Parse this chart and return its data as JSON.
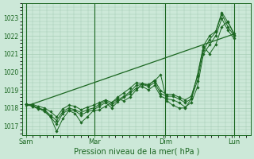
{
  "bg_color": "#cce8d8",
  "grid_color": "#a0c8b0",
  "line_color": "#1a6620",
  "xlabel": "Pression niveau de la mer( hPa )",
  "ylim": [
    1016.5,
    1023.8
  ],
  "yticks": [
    1017,
    1018,
    1019,
    1020,
    1021,
    1022,
    1023
  ],
  "xtick_labels": [
    "Sam",
    "Mar",
    "Dim",
    "Lun"
  ],
  "xtick_positions": [
    0,
    0.33,
    0.67,
    1.0
  ],
  "total_points": 35,
  "series": [
    [
      1018.2,
      1018.15,
      1018.0,
      1017.8,
      1017.5,
      1016.7,
      1017.4,
      1017.85,
      1017.7,
      1017.2,
      1017.5,
      1017.85,
      1017.9,
      1018.1,
      1018.3,
      1018.5,
      1018.4,
      1018.6,
      1019.0,
      1019.35,
      1019.3,
      1019.5,
      1019.85,
      1018.4,
      1018.15,
      1018.0,
      1018.0,
      1018.5,
      1019.8,
      1021.4,
      1021.0,
      1021.5,
      1022.5,
      1022.8,
      1022.05
    ],
    [
      1018.2,
      1018.1,
      1018.0,
      1017.9,
      1017.6,
      1017.3,
      1017.8,
      1018.0,
      1017.9,
      1017.75,
      1017.9,
      1018.0,
      1018.2,
      1018.4,
      1018.15,
      1018.45,
      1018.65,
      1018.9,
      1019.25,
      1019.3,
      1019.2,
      1019.4,
      1018.8,
      1018.65,
      1018.65,
      1018.5,
      1018.3,
      1018.5,
      1019.5,
      1021.2,
      1021.8,
      1022.2,
      1023.2,
      1022.5,
      1022.0
    ],
    [
      1018.2,
      1018.1,
      1017.95,
      1017.9,
      1017.5,
      1017.1,
      1017.7,
      1017.9,
      1017.85,
      1017.6,
      1017.8,
      1017.9,
      1018.1,
      1018.3,
      1018.0,
      1018.35,
      1018.6,
      1018.8,
      1019.1,
      1019.2,
      1019.0,
      1019.25,
      1018.65,
      1018.5,
      1018.45,
      1018.3,
      1018.05,
      1018.3,
      1019.15,
      1021.0,
      1021.5,
      1022.0,
      1022.95,
      1022.3,
      1021.85
    ],
    [
      1018.2,
      1018.2,
      1018.1,
      1018.0,
      1017.8,
      1017.5,
      1017.95,
      1018.15,
      1018.1,
      1017.9,
      1018.05,
      1018.15,
      1018.3,
      1018.45,
      1018.3,
      1018.6,
      1018.85,
      1019.1,
      1019.4,
      1019.35,
      1019.25,
      1019.55,
      1018.95,
      1018.75,
      1018.75,
      1018.6,
      1018.45,
      1018.65,
      1019.75,
      1021.45,
      1022.0,
      1022.25,
      1023.3,
      1022.75,
      1022.15
    ]
  ],
  "trend_line": [
    1018.1,
    1022.1
  ]
}
